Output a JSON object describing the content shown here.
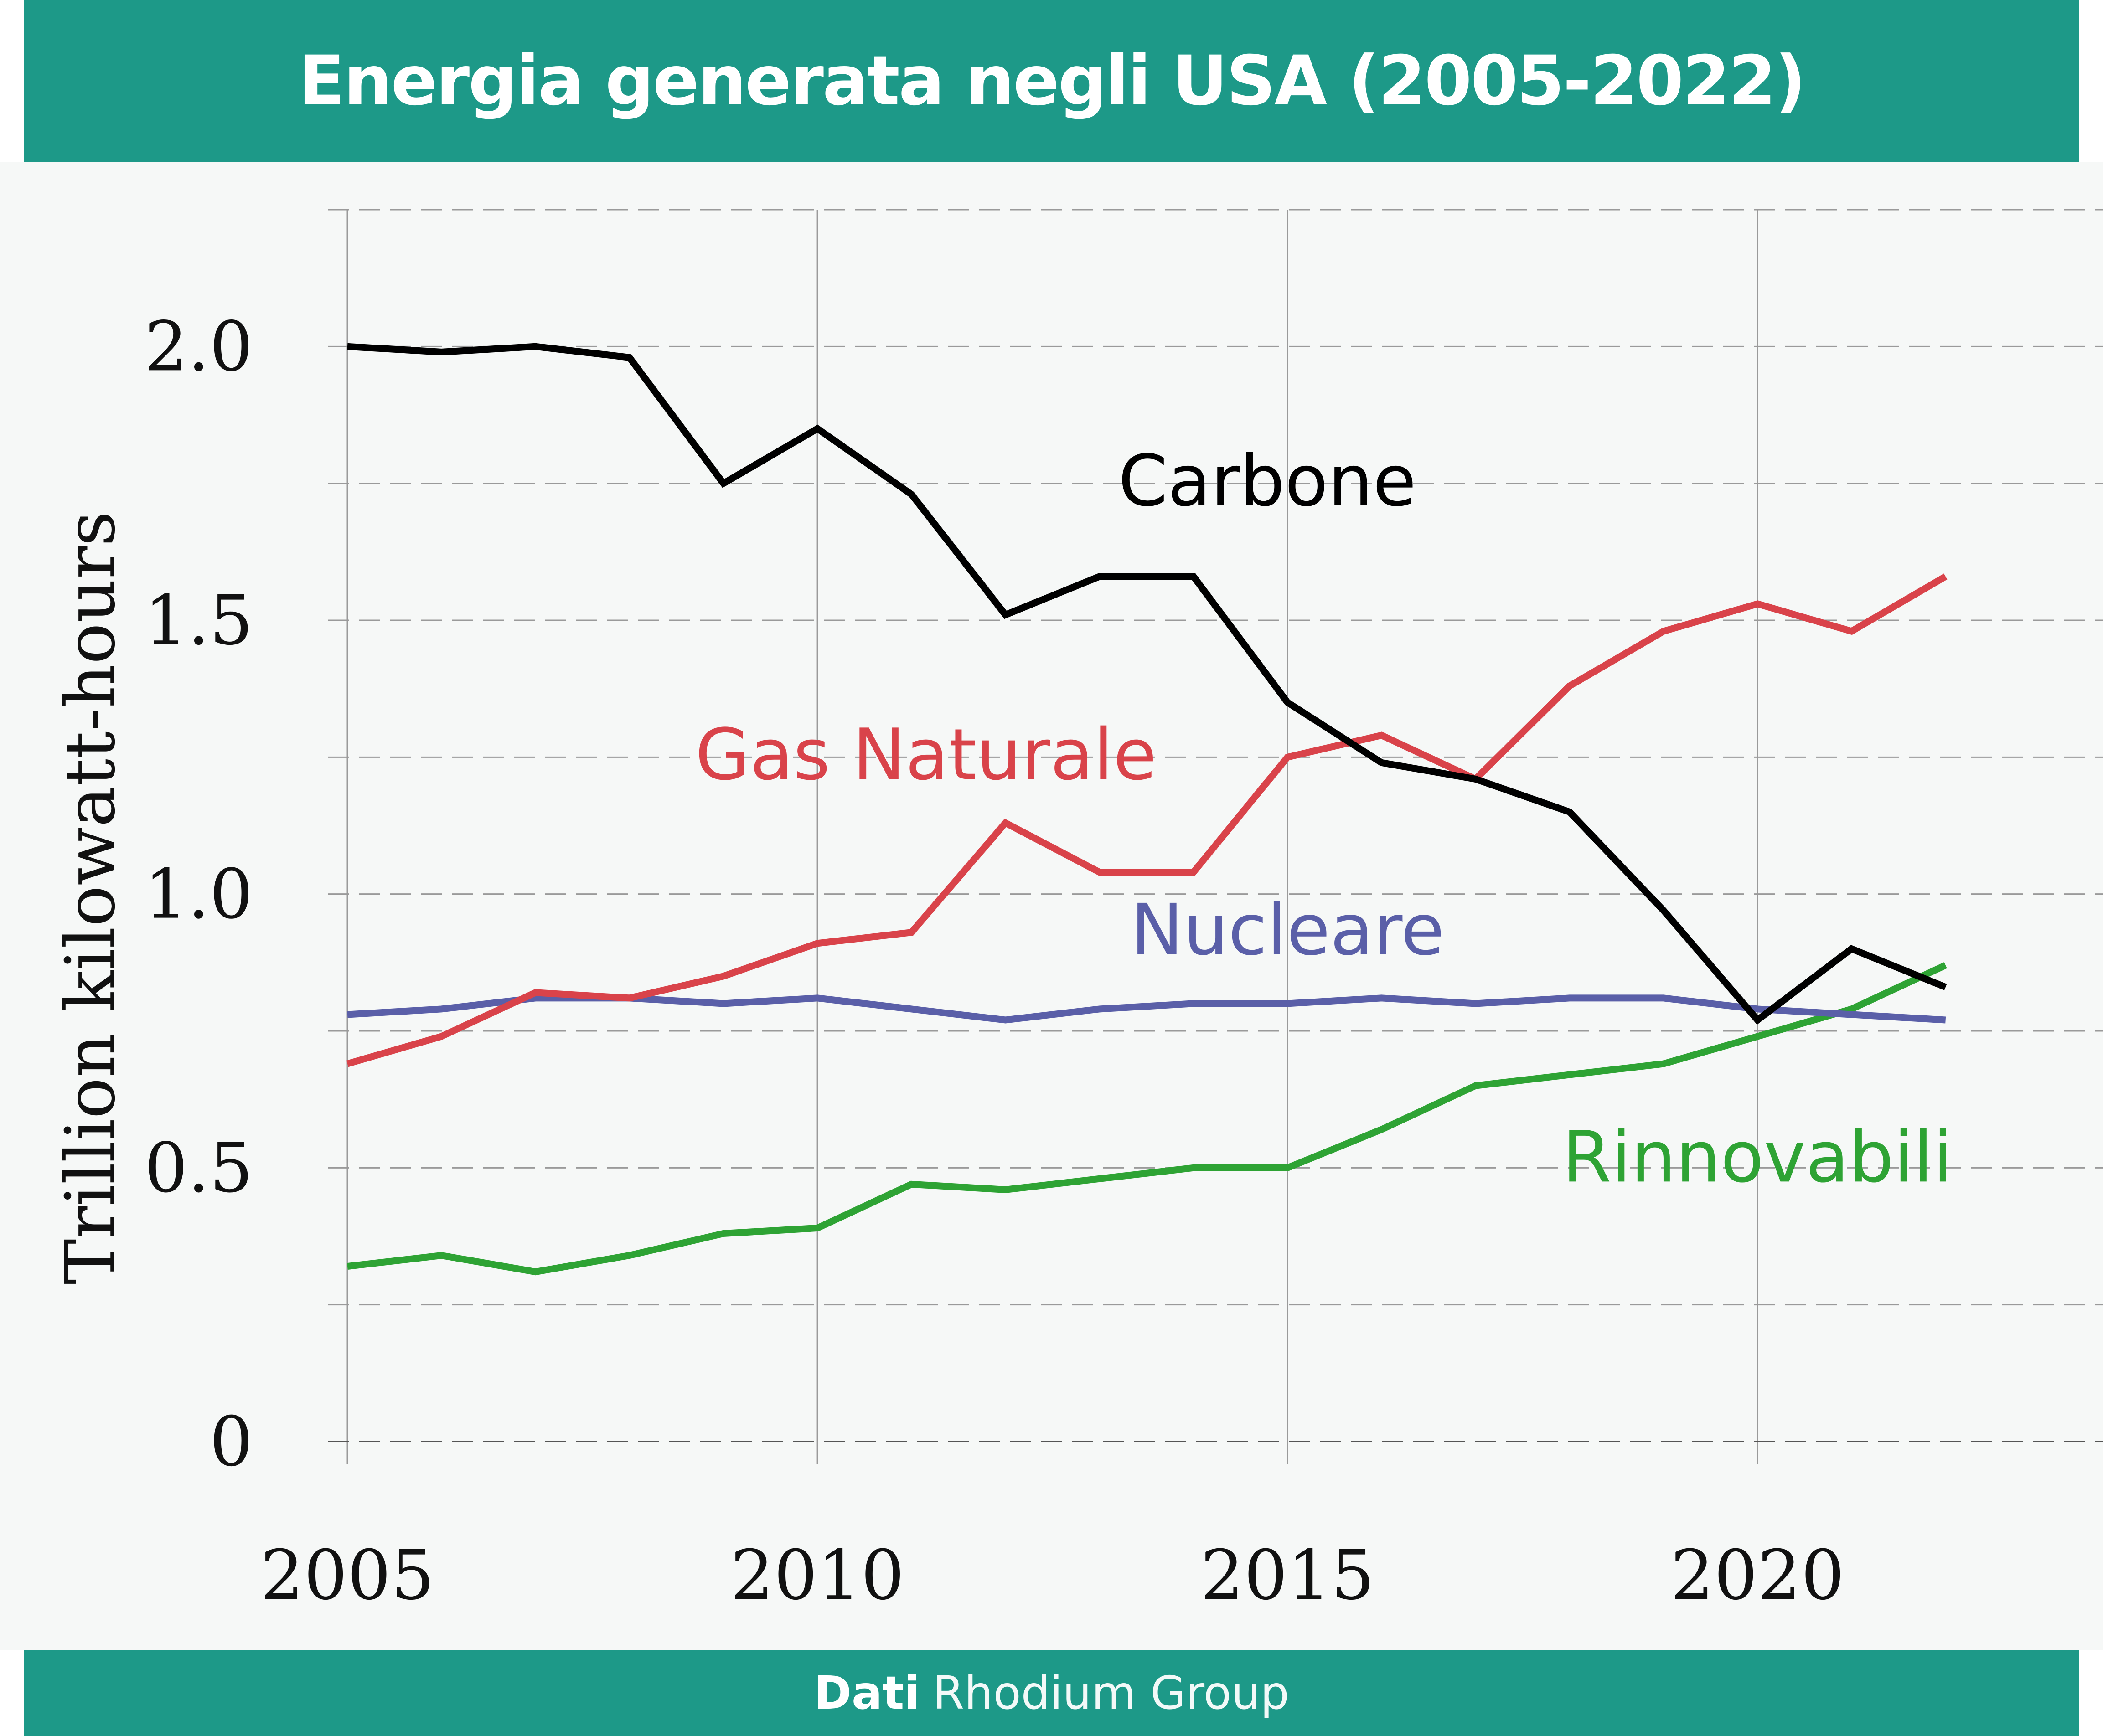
{
  "title": "Energia generata negli USA (2005-2022)",
  "footer": {
    "label": "Dati",
    "source": "Rhodium Group"
  },
  "colors": {
    "brand": "#1d9988",
    "coal": "#000000",
    "gas": "#d9434a",
    "nuclear": "#5a5fa8",
    "renewables": "#2ea334"
  },
  "chart_data": {
    "type": "line",
    "title": "Energia generata negli USA (2005-2022)",
    "xlabel": "",
    "ylabel": "Trillion kilowatt-hours",
    "xlim": [
      2005,
      2023.5
    ],
    "ylim": [
      0,
      2.25
    ],
    "x_ticks": [
      2005,
      2010,
      2015,
      2020
    ],
    "x_tick_labels": [
      "2005",
      "2010",
      "2015",
      "2020"
    ],
    "y_ticks": [
      0,
      0.5,
      1.0,
      1.5,
      2.0
    ],
    "y_tick_labels": [
      "0",
      "0.5",
      "1.0",
      "1.5",
      "2.0"
    ],
    "y_grid": [
      0.25,
      0.5,
      0.75,
      1.0,
      1.25,
      1.5,
      1.75,
      2.0,
      2.25
    ],
    "x": [
      2005,
      2006,
      2007,
      2008,
      2009,
      2010,
      2011,
      2012,
      2013,
      2014,
      2015,
      2016,
      2017,
      2018,
      2019,
      2020,
      2021,
      2022
    ],
    "series": [
      {
        "key": "coal",
        "name": "Carbone",
        "values": [
          2.0,
          1.99,
          2.0,
          1.98,
          1.75,
          1.85,
          1.73,
          1.51,
          1.58,
          1.58,
          1.35,
          1.24,
          1.21,
          1.15,
          0.97,
          0.77,
          0.9,
          0.83
        ]
      },
      {
        "key": "gas",
        "name": "Gas Naturale",
        "values": [
          0.69,
          0.74,
          0.82,
          0.81,
          0.85,
          0.91,
          0.93,
          1.13,
          1.04,
          1.04,
          1.25,
          1.29,
          1.21,
          1.38,
          1.48,
          1.53,
          1.48,
          1.58
        ]
      },
      {
        "key": "nuclear",
        "name": "Nucleare",
        "values": [
          0.78,
          0.79,
          0.81,
          0.81,
          0.8,
          0.81,
          0.79,
          0.77,
          0.79,
          0.8,
          0.8,
          0.81,
          0.8,
          0.81,
          0.81,
          0.79,
          0.78,
          0.77
        ]
      },
      {
        "key": "renewables",
        "name": "Rinnovabili",
        "values": [
          0.32,
          0.34,
          0.31,
          0.34,
          0.38,
          0.39,
          0.47,
          0.46,
          0.48,
          0.5,
          0.5,
          0.57,
          0.65,
          0.67,
          0.69,
          0.74,
          0.79,
          0.87
        ]
      }
    ]
  }
}
